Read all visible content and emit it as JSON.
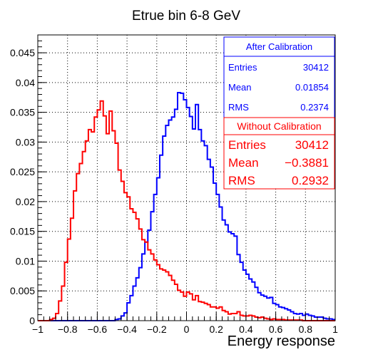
{
  "chart_data": {
    "type": "line",
    "title": "Etrue bin 6-8 GeV",
    "xlabel": "Energy response",
    "ylabel": "",
    "xlim": [
      -1,
      1
    ],
    "ylim": [
      0,
      0.048
    ],
    "x_ticks": [
      "−1",
      "−0.8",
      "−0.6",
      "−0.4",
      "−0.2",
      "0",
      "0.2",
      "0.4",
      "0.6",
      "0.8",
      "1"
    ],
    "y_ticks": [
      "0",
      "0.005",
      "0.01",
      "0.015",
      "0.02",
      "0.025",
      "0.03",
      "0.035",
      "0.04",
      "0.045"
    ],
    "grid": true,
    "bin_width": 0.02,
    "series": [
      {
        "name": "After Calibration",
        "color": "#0000ff",
        "x": [
          -0.99,
          -0.97,
          -0.95,
          -0.93,
          -0.91,
          -0.89,
          -0.87,
          -0.85,
          -0.83,
          -0.81,
          -0.79,
          -0.77,
          -0.75,
          -0.73,
          -0.71,
          -0.69,
          -0.67,
          -0.65,
          -0.63,
          -0.61,
          -0.59,
          -0.57,
          -0.55,
          -0.53,
          -0.51,
          -0.49,
          -0.47,
          -0.45,
          -0.43,
          -0.41,
          -0.39,
          -0.37,
          -0.35,
          -0.33,
          -0.31,
          -0.29,
          -0.27,
          -0.25,
          -0.23,
          -0.21,
          -0.19,
          -0.17,
          -0.15,
          -0.13,
          -0.11,
          -0.09,
          -0.07,
          -0.05,
          -0.03,
          -0.01,
          0.01,
          0.03,
          0.05,
          0.07,
          0.09,
          0.11,
          0.13,
          0.15,
          0.17,
          0.19,
          0.21,
          0.23,
          0.25,
          0.27,
          0.29,
          0.31,
          0.33,
          0.35,
          0.37,
          0.39,
          0.41,
          0.43,
          0.45,
          0.47,
          0.49,
          0.51,
          0.53,
          0.55,
          0.57,
          0.59,
          0.61,
          0.63,
          0.65,
          0.67,
          0.69,
          0.71,
          0.73,
          0.75,
          0.77,
          0.79,
          0.81,
          0.83,
          0.85,
          0.87,
          0.89,
          0.91,
          0.93,
          0.95,
          0.97,
          0.99
        ],
        "values": [
          0,
          0,
          0,
          0,
          0,
          0,
          0,
          0,
          0,
          0,
          0,
          0,
          0,
          0,
          0,
          0,
          0,
          0,
          0,
          0,
          0,
          0,
          0,
          0,
          0,
          0,
          0.0002,
          0.0003,
          0.0008,
          0.0013,
          0.003,
          0.0042,
          0.0058,
          0.0072,
          0.0089,
          0.0112,
          0.0132,
          0.0152,
          0.0183,
          0.0212,
          0.024,
          0.0278,
          0.031,
          0.0328,
          0.0337,
          0.0342,
          0.0355,
          0.0383,
          0.0382,
          0.0371,
          0.0358,
          0.0343,
          0.0322,
          0.0363,
          0.0321,
          0.0302,
          0.0294,
          0.0271,
          0.0258,
          0.0231,
          0.0212,
          0.0191,
          0.0169,
          0.0161,
          0.0149,
          0.0146,
          0.0142,
          0.0111,
          0.0098,
          0.0085,
          0.0078,
          0.007,
          0.0065,
          0.0056,
          0.0047,
          0.0043,
          0.0041,
          0.0038,
          0.0039,
          0.0029,
          0.0027,
          0.0023,
          0.0022,
          0.002,
          0.0018,
          0.0015,
          0.0012,
          0.0011,
          0.0012,
          0.0009,
          0.0011,
          0.0009,
          0.0008,
          0.0006,
          0.0006,
          0.0006,
          0.0004,
          0.0003,
          0.0003,
          0.0002
        ]
      },
      {
        "name": "Without Calibration",
        "color": "#ff0000",
        "x": [
          -0.99,
          -0.97,
          -0.95,
          -0.93,
          -0.91,
          -0.89,
          -0.87,
          -0.85,
          -0.83,
          -0.81,
          -0.79,
          -0.77,
          -0.75,
          -0.73,
          -0.71,
          -0.69,
          -0.67,
          -0.65,
          -0.63,
          -0.61,
          -0.59,
          -0.57,
          -0.55,
          -0.53,
          -0.51,
          -0.49,
          -0.47,
          -0.45,
          -0.43,
          -0.41,
          -0.39,
          -0.37,
          -0.35,
          -0.33,
          -0.31,
          -0.29,
          -0.27,
          -0.25,
          -0.23,
          -0.21,
          -0.19,
          -0.17,
          -0.15,
          -0.13,
          -0.11,
          -0.09,
          -0.07,
          -0.05,
          -0.03,
          -0.01,
          0.01,
          0.03,
          0.05,
          0.07,
          0.09,
          0.11,
          0.13,
          0.15,
          0.17,
          0.19,
          0.21,
          0.23,
          0.25,
          0.27,
          0.29,
          0.31,
          0.33,
          0.35,
          0.37,
          0.39,
          0.41,
          0.43,
          0.45,
          0.47,
          0.49,
          0.51,
          0.53,
          0.55,
          0.57,
          0.59,
          0.61,
          0.63,
          0.65,
          0.67,
          0.69,
          0.71,
          0.73,
          0.75,
          0.77,
          0.79,
          0.81,
          0.83,
          0.85,
          0.87,
          0.89,
          0.91,
          0.93,
          0.95,
          0.97,
          0.99
        ],
        "values": [
          0,
          0,
          0,
          0,
          0.0002,
          0.0004,
          0.0012,
          0.0033,
          0.0058,
          0.0098,
          0.0137,
          0.0172,
          0.0218,
          0.0247,
          0.0264,
          0.0284,
          0.0302,
          0.0321,
          0.0317,
          0.0342,
          0.0354,
          0.0369,
          0.0344,
          0.0314,
          0.0352,
          0.0319,
          0.0298,
          0.0253,
          0.0234,
          0.0215,
          0.0208,
          0.0188,
          0.0182,
          0.0171,
          0.0154,
          0.0136,
          0.0132,
          0.0119,
          0.0112,
          0.0102,
          0.0094,
          0.0087,
          0.0085,
          0.0082,
          0.0076,
          0.0068,
          0.0061,
          0.0051,
          0.0048,
          0.0041,
          0.0048,
          0.0045,
          0.0035,
          0.0042,
          0.0032,
          0.0031,
          0.0029,
          0.0027,
          0.0023,
          0.0023,
          0.0021,
          0.0023,
          0.0017,
          0.0015,
          0.0011,
          0.0012,
          0.0012,
          0.0015,
          0.0009,
          0.0008,
          0.0008,
          0.0009,
          0.0008,
          0.0006,
          0.0005,
          0.0006,
          0.0004,
          0.0003,
          0.0002,
          0.0003,
          0.0002,
          0.0002,
          0.0002,
          0.0001,
          0.0001,
          0.0001,
          0.0001,
          0.0001,
          0.0001,
          0,
          0,
          0,
          0,
          0,
          0,
          0,
          0,
          0,
          0,
          0
        ]
      }
    ],
    "stats": [
      {
        "title": "After Calibration",
        "color": "#0000ff",
        "rows": [
          {
            "label": "Entries",
            "value": "30412"
          },
          {
            "label": "Mean",
            "value": "0.01854"
          },
          {
            "label": "RMS",
            "value": "0.2374"
          }
        ]
      },
      {
        "title": "Without Calibration",
        "color": "#ff0000",
        "rows": [
          {
            "label": "Entries",
            "value": "30412"
          },
          {
            "label": "Mean",
            "value": "−0.3881"
          },
          {
            "label": "RMS",
            "value": "0.2932"
          }
        ]
      }
    ]
  }
}
